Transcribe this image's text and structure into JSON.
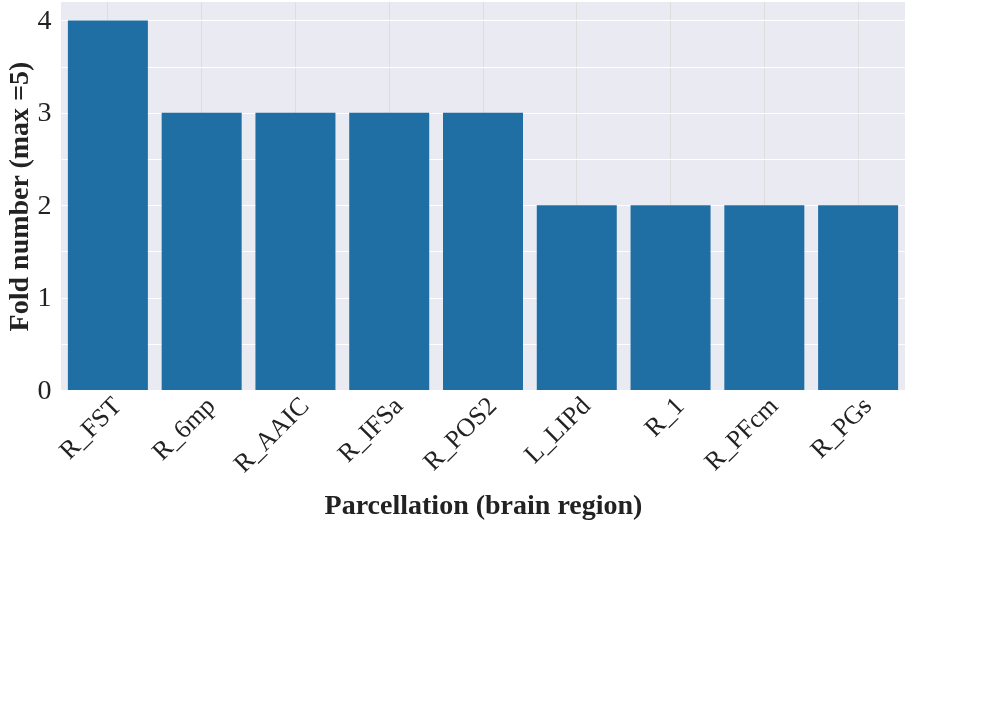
{
  "chart_data": {
    "type": "bar",
    "xlabel": "Parcellation (brain region)",
    "ylabel": "Fold number (max =5)",
    "categories": [
      "R_FST",
      "R_6mp",
      "R_AAIC",
      "R_IFSa",
      "R_POS2",
      "L_LIPd",
      "R_1",
      "R_PFcm",
      "R_PGs"
    ],
    "values": [
      4,
      3,
      3,
      3,
      3,
      2,
      2,
      2,
      2
    ],
    "color": "#1f6fa4",
    "ylim": [
      0,
      4.2
    ],
    "yticks": [
      0,
      {
        "value": 0.5,
        "label": null
      },
      1,
      {
        "value": 1.5,
        "label": null
      },
      2,
      {
        "value": 2.5,
        "label": null
      },
      3,
      {
        "value": 3.5,
        "label": null
      },
      4
    ],
    "grid": true
  }
}
